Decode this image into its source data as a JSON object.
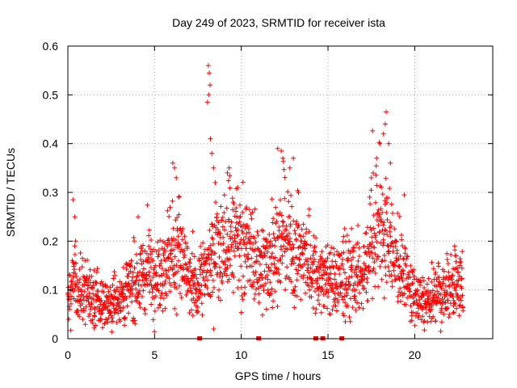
{
  "chart_data": {
    "type": "scatter",
    "title": "Day 249 of 2023, SRMTID for receiver ista",
    "xlabel": "GPS time / hours",
    "ylabel": "SRMTID / TECUs",
    "xlim": [
      0,
      24.5
    ],
    "ylim": [
      0,
      0.6
    ],
    "xticks": [
      0,
      5,
      10,
      15,
      20
    ],
    "yticks": [
      0,
      0.1,
      0.2,
      0.3,
      0.4,
      0.5,
      0.6
    ],
    "xtick_labels": [
      "0",
      "5",
      "10",
      "15",
      "20"
    ],
    "ytick_labels": [
      "0",
      "0.1",
      "0.2",
      "0.3",
      "0.4",
      "0.5",
      "0.6"
    ],
    "grid": true,
    "marker": "+",
    "color": "#ff0000",
    "zero_markers_x": [
      7.6,
      11.0,
      14.3,
      14.7,
      15.8
    ],
    "series": [
      {
        "name": "SRMTID",
        "profile": [
          [
            0.0,
            0.07
          ],
          [
            0.3,
            0.12
          ],
          [
            0.5,
            0.1
          ],
          [
            1.0,
            0.09
          ],
          [
            1.5,
            0.08
          ],
          [
            2.0,
            0.065
          ],
          [
            2.5,
            0.07
          ],
          [
            3.0,
            0.08
          ],
          [
            3.5,
            0.1
          ],
          [
            4.0,
            0.12
          ],
          [
            4.5,
            0.13
          ],
          [
            5.0,
            0.14
          ],
          [
            5.5,
            0.14
          ],
          [
            6.0,
            0.17
          ],
          [
            6.5,
            0.16
          ],
          [
            7.0,
            0.11
          ],
          [
            7.5,
            0.1
          ],
          [
            8.0,
            0.14
          ],
          [
            8.5,
            0.18
          ],
          [
            9.0,
            0.18
          ],
          [
            9.5,
            0.19
          ],
          [
            10.0,
            0.19
          ],
          [
            10.5,
            0.16
          ],
          [
            11.0,
            0.14
          ],
          [
            11.5,
            0.15
          ],
          [
            12.0,
            0.19
          ],
          [
            12.5,
            0.2
          ],
          [
            13.0,
            0.18
          ],
          [
            13.5,
            0.17
          ],
          [
            14.0,
            0.14
          ],
          [
            14.5,
            0.13
          ],
          [
            15.0,
            0.12
          ],
          [
            15.5,
            0.11
          ],
          [
            16.0,
            0.13
          ],
          [
            16.5,
            0.12
          ],
          [
            17.0,
            0.12
          ],
          [
            17.5,
            0.19
          ],
          [
            18.0,
            0.22
          ],
          [
            18.5,
            0.2
          ],
          [
            19.0,
            0.15
          ],
          [
            19.5,
            0.12
          ],
          [
            20.0,
            0.085
          ],
          [
            20.5,
            0.08
          ],
          [
            21.0,
            0.08
          ],
          [
            21.5,
            0.09
          ],
          [
            22.0,
            0.1
          ],
          [
            22.5,
            0.11
          ],
          [
            22.8,
            0.1
          ]
        ],
        "outliers": [
          [
            0.3,
            0.285
          ],
          [
            0.4,
            0.25
          ],
          [
            0.45,
            0.2
          ],
          [
            4.05,
            0.25
          ],
          [
            5.6,
            0.18
          ],
          [
            6.05,
            0.36
          ],
          [
            6.15,
            0.35
          ],
          [
            6.25,
            0.33
          ],
          [
            6.4,
            0.29
          ],
          [
            7.2,
            0.22
          ],
          [
            8.1,
            0.56
          ],
          [
            8.15,
            0.545
          ],
          [
            8.2,
            0.52
          ],
          [
            8.12,
            0.5
          ],
          [
            8.05,
            0.485
          ],
          [
            8.22,
            0.41
          ],
          [
            8.3,
            0.38
          ],
          [
            8.4,
            0.35
          ],
          [
            8.5,
            0.32
          ],
          [
            9.2,
            0.34
          ],
          [
            9.3,
            0.35
          ],
          [
            9.8,
            0.31
          ],
          [
            10.3,
            0.27
          ],
          [
            12.1,
            0.39
          ],
          [
            12.3,
            0.385
          ],
          [
            12.4,
            0.37
          ],
          [
            12.8,
            0.35
          ],
          [
            13.0,
            0.37
          ],
          [
            13.3,
            0.3
          ],
          [
            16.0,
            0.035
          ],
          [
            17.5,
            0.33
          ],
          [
            17.8,
            0.37
          ],
          [
            18.0,
            0.4
          ],
          [
            18.2,
            0.42
          ],
          [
            18.3,
            0.44
          ],
          [
            18.35,
            0.465
          ],
          [
            18.5,
            0.4
          ],
          [
            18.6,
            0.36
          ],
          [
            21.5,
            0.015
          ],
          [
            22.3,
            0.19
          ],
          [
            22.4,
            0.17
          ],
          [
            22.6,
            0.15
          ]
        ]
      }
    ]
  }
}
